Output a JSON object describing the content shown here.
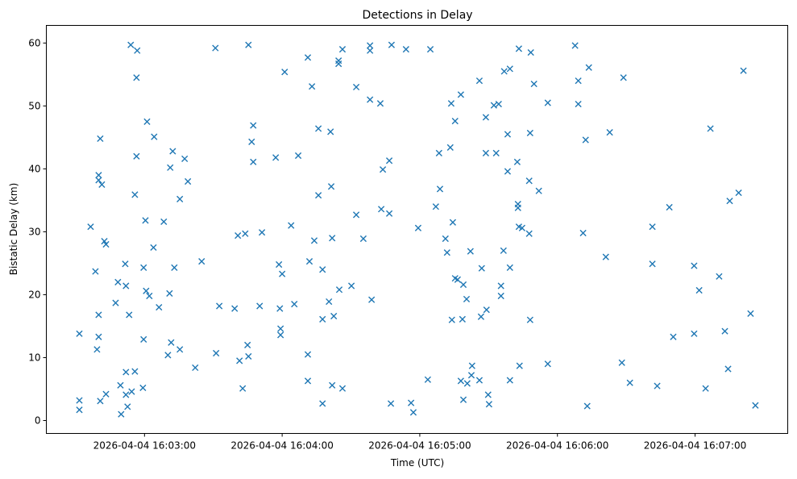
{
  "chart_data": {
    "type": "scatter",
    "title": "Detections in Delay",
    "xlabel": "Time (UTC)",
    "ylabel": "Bistatic Delay (km)",
    "x_units": "seconds after 2026-04-04 16:02:00",
    "xlim": [
      17.2,
      340.4
    ],
    "ylim": [
      -2.05,
      62.8
    ],
    "grid": false,
    "marker": "x",
    "color": "#1f77b4",
    "x_ticks": [
      {
        "value": 60,
        "label": "2026-04-04 16:03:00"
      },
      {
        "value": 120,
        "label": "2026-04-04 16:04:00"
      },
      {
        "value": 180,
        "label": "2026-04-04 16:05:00"
      },
      {
        "value": 240,
        "label": "2026-04-04 16:06:00"
      },
      {
        "value": 300,
        "label": "2026-04-04 16:07:00"
      }
    ],
    "y_ticks": [
      {
        "value": 0,
        "label": "0"
      },
      {
        "value": 10,
        "label": "10"
      },
      {
        "value": 20,
        "label": "20"
      },
      {
        "value": 30,
        "label": "30"
      },
      {
        "value": 40,
        "label": "40"
      },
      {
        "value": 50,
        "label": "50"
      },
      {
        "value": 60,
        "label": "60"
      }
    ],
    "points": [
      [
        31.6,
        13.8
      ],
      [
        31.6,
        3.2
      ],
      [
        31.6,
        1.7
      ],
      [
        36.5,
        30.8
      ],
      [
        38.6,
        23.7
      ],
      [
        39.3,
        11.3
      ],
      [
        40.0,
        16.8
      ],
      [
        40.0,
        13.3
      ],
      [
        40.0,
        39.0
      ],
      [
        40.0,
        38.2
      ],
      [
        40.7,
        3.1
      ],
      [
        40.7,
        44.8
      ],
      [
        41.4,
        37.5
      ],
      [
        42.5,
        28.5
      ],
      [
        43.2,
        28.0
      ],
      [
        43.2,
        4.2
      ],
      [
        47.4,
        18.7
      ],
      [
        48.4,
        22.0
      ],
      [
        49.5,
        5.6
      ],
      [
        49.8,
        1.0
      ],
      [
        51.6,
        24.9
      ],
      [
        51.9,
        7.7
      ],
      [
        51.9,
        21.4
      ],
      [
        51.9,
        4.1
      ],
      [
        52.6,
        2.2
      ],
      [
        53.3,
        16.8
      ],
      [
        54.4,
        4.6
      ],
      [
        54.0,
        59.7
      ],
      [
        55.8,
        7.8
      ],
      [
        55.8,
        35.9
      ],
      [
        56.8,
        58.8
      ],
      [
        56.5,
        54.5
      ],
      [
        56.5,
        42.0
      ],
      [
        59.3,
        5.2
      ],
      [
        59.6,
        12.9
      ],
      [
        59.6,
        24.3
      ],
      [
        60.4,
        31.8
      ],
      [
        61.1,
        47.5
      ],
      [
        60.7,
        20.6
      ],
      [
        62.1,
        19.8
      ],
      [
        63.9,
        27.5
      ],
      [
        64.2,
        45.1
      ],
      [
        66.3,
        18.0
      ],
      [
        68.4,
        31.6
      ],
      [
        70.2,
        10.4
      ],
      [
        70.9,
        20.2
      ],
      [
        71.2,
        40.2
      ],
      [
        71.6,
        12.4
      ],
      [
        72.3,
        42.8
      ],
      [
        73.0,
        24.3
      ],
      [
        75.4,
        35.2
      ],
      [
        75.4,
        11.3
      ],
      [
        77.5,
        41.6
      ],
      [
        78.9,
        38.0
      ],
      [
        82.1,
        8.4
      ],
      [
        84.9,
        25.3
      ],
      [
        90.9,
        59.2
      ],
      [
        91.2,
        10.7
      ],
      [
        92.6,
        18.2
      ],
      [
        99.3,
        17.8
      ],
      [
        100.7,
        29.4
      ],
      [
        101.4,
        9.5
      ],
      [
        102.8,
        5.1
      ],
      [
        103.9,
        29.7
      ],
      [
        104.9,
        12.0
      ],
      [
        105.3,
        10.2
      ],
      [
        105.3,
        59.7
      ],
      [
        106.7,
        44.3
      ],
      [
        107.4,
        46.9
      ],
      [
        107.4,
        41.1
      ],
      [
        110.2,
        18.2
      ],
      [
        111.2,
        29.9
      ],
      [
        117.2,
        41.8
      ],
      [
        118.6,
        24.8
      ],
      [
        119.0,
        17.8
      ],
      [
        119.3,
        14.6
      ],
      [
        119.3,
        13.6
      ],
      [
        120.0,
        23.3
      ],
      [
        121.1,
        55.4
      ],
      [
        123.9,
        31.0
      ],
      [
        125.3,
        18.5
      ],
      [
        127.0,
        42.1
      ],
      [
        131.2,
        57.7
      ],
      [
        131.2,
        10.5
      ],
      [
        131.2,
        6.3
      ],
      [
        131.9,
        25.3
      ],
      [
        133.0,
        53.1
      ],
      [
        134.0,
        28.6
      ],
      [
        135.8,
        35.8
      ],
      [
        135.8,
        46.4
      ],
      [
        137.6,
        24.0
      ],
      [
        137.6,
        2.7
      ],
      [
        137.6,
        16.1
      ],
      [
        140.4,
        18.9
      ],
      [
        141.1,
        45.9
      ],
      [
        141.4,
        37.2
      ],
      [
        141.8,
        29.0
      ],
      [
        141.8,
        5.6
      ],
      [
        142.5,
        16.6
      ],
      [
        144.6,
        57.2
      ],
      [
        144.6,
        56.7
      ],
      [
        144.9,
        20.8
      ],
      [
        146.3,
        59.0
      ],
      [
        146.3,
        5.1
      ],
      [
        150.2,
        21.4
      ],
      [
        152.3,
        53.0
      ],
      [
        152.3,
        32.7
      ],
      [
        155.4,
        28.9
      ],
      [
        158.3,
        51.0
      ],
      [
        158.3,
        59.6
      ],
      [
        158.3,
        58.8
      ],
      [
        159.0,
        19.2
      ],
      [
        162.8,
        50.4
      ],
      [
        163.2,
        33.6
      ],
      [
        163.9,
        39.9
      ],
      [
        166.7,
        41.3
      ],
      [
        166.7,
        32.9
      ],
      [
        167.7,
        59.7
      ],
      [
        167.4,
        2.7
      ],
      [
        174.0,
        59.0
      ],
      [
        176.2,
        2.8
      ],
      [
        177.2,
        1.3
      ],
      [
        179.3,
        30.6
      ],
      [
        183.5,
        6.5
      ],
      [
        184.6,
        59.0
      ],
      [
        187.0,
        34.0
      ],
      [
        188.4,
        42.5
      ],
      [
        188.8,
        36.8
      ],
      [
        191.2,
        28.9
      ],
      [
        191.9,
        26.7
      ],
      [
        193.3,
        43.4
      ],
      [
        193.7,
        50.4
      ],
      [
        194.0,
        16.0
      ],
      [
        194.4,
        31.5
      ],
      [
        195.4,
        47.6
      ],
      [
        195.4,
        22.6
      ],
      [
        196.5,
        22.4
      ],
      [
        197.9,
        51.8
      ],
      [
        197.9,
        6.3
      ],
      [
        198.6,
        16.1
      ],
      [
        199.0,
        21.6
      ],
      [
        199.0,
        3.3
      ],
      [
        200.4,
        19.3
      ],
      [
        200.7,
        5.9
      ],
      [
        202.1,
        26.9
      ],
      [
        202.5,
        7.2
      ],
      [
        202.8,
        8.7
      ],
      [
        206.0,
        54.0
      ],
      [
        206.0,
        6.4
      ],
      [
        207.0,
        24.2
      ],
      [
        206.7,
        16.5
      ],
      [
        208.8,
        48.2
      ],
      [
        208.8,
        42.5
      ],
      [
        209.1,
        17.6
      ],
      [
        209.8,
        4.1
      ],
      [
        210.2,
        2.6
      ],
      [
        212.3,
        50.1
      ],
      [
        213.3,
        42.5
      ],
      [
        214.4,
        50.3
      ],
      [
        215.4,
        19.8
      ],
      [
        215.4,
        21.4
      ],
      [
        216.5,
        27.0
      ],
      [
        216.8,
        55.5
      ],
      [
        218.3,
        45.5
      ],
      [
        218.3,
        39.6
      ],
      [
        219.3,
        55.9
      ],
      [
        219.3,
        6.4
      ],
      [
        219.3,
        24.3
      ],
      [
        222.5,
        41.1
      ],
      [
        222.8,
        34.4
      ],
      [
        222.8,
        33.8
      ],
      [
        223.2,
        30.8
      ],
      [
        223.2,
        59.1
      ],
      [
        223.5,
        8.7
      ],
      [
        224.6,
        30.6
      ],
      [
        227.7,
        29.7
      ],
      [
        227.7,
        38.1
      ],
      [
        228.1,
        45.7
      ],
      [
        228.1,
        16.0
      ],
      [
        228.4,
        58.5
      ],
      [
        229.8,
        53.5
      ],
      [
        231.9,
        36.5
      ],
      [
        235.8,
        50.5
      ],
      [
        235.8,
        9.0
      ],
      [
        247.7,
        59.6
      ],
      [
        249.1,
        54.0
      ],
      [
        249.1,
        50.3
      ],
      [
        251.2,
        29.8
      ],
      [
        252.3,
        44.6
      ],
      [
        253.0,
        2.3
      ],
      [
        253.7,
        56.1
      ],
      [
        261.1,
        26.0
      ],
      [
        262.8,
        45.8
      ],
      [
        268.1,
        9.2
      ],
      [
        268.8,
        54.5
      ],
      [
        271.6,
        6.0
      ],
      [
        281.4,
        30.8
      ],
      [
        281.4,
        24.9
      ],
      [
        283.5,
        5.5
      ],
      [
        288.8,
        33.9
      ],
      [
        290.5,
        13.3
      ],
      [
        299.6,
        24.6
      ],
      [
        299.6,
        13.8
      ],
      [
        301.8,
        20.7
      ],
      [
        304.6,
        5.1
      ],
      [
        306.7,
        46.4
      ],
      [
        310.5,
        22.9
      ],
      [
        313.0,
        14.2
      ],
      [
        314.4,
        8.2
      ],
      [
        315.1,
        34.9
      ],
      [
        319.0,
        36.2
      ],
      [
        321.1,
        55.6
      ],
      [
        324.2,
        17.0
      ],
      [
        326.3,
        2.4
      ]
    ]
  }
}
